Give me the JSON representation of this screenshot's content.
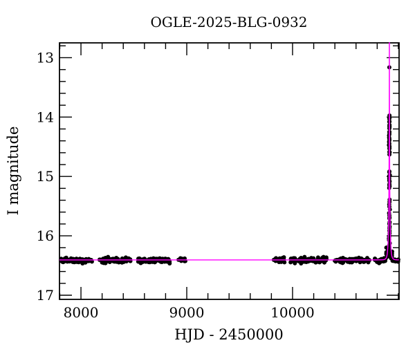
{
  "chart_data": {
    "type": "scatter",
    "title": "OGLE-2025-BLG-0932",
    "xlabel": "HJD - 2450000",
    "ylabel": "I magnitude",
    "xlim": [
      7797,
      11007
    ],
    "ylim": [
      17.07,
      12.75
    ],
    "y_axis_inverted": true,
    "grid": false,
    "legend": null,
    "x_major_ticks": [
      8000,
      9000,
      10000
    ],
    "x_minor_step": 200,
    "y_major_ticks": [
      13,
      14,
      15,
      16,
      17
    ],
    "y_minor_step": 0.2,
    "background_color": "#ffffff",
    "frame_color": "#000000",
    "point_color": "#000000",
    "model_color": "#ff00ff",
    "baseline_mag": 16.41,
    "peak": {
      "t": 10915,
      "brightest_point_mag": 13.15
    },
    "model": {
      "kind": "point-lens-magnification-curve",
      "t0": 10915,
      "tE": 12,
      "u0": 0.0015,
      "baseline_mag": 16.405
    },
    "point_clusters": [
      {
        "t_start": 7810,
        "t_end": 8105,
        "mag": 16.41,
        "mag_sigma": 0.022,
        "n": 68
      },
      {
        "t_start": 8170,
        "t_end": 8470,
        "mag": 16.41,
        "mag_sigma": 0.022,
        "n": 70
      },
      {
        "t_start": 8536,
        "t_end": 8843,
        "mag": 16.41,
        "mag_sigma": 0.022,
        "n": 72
      },
      {
        "t_start": 8921,
        "t_end": 8987,
        "mag": 16.41,
        "mag_sigma": 0.02,
        "n": 14
      },
      {
        "t_start": 9817,
        "t_end": 9935,
        "mag": 16.41,
        "mag_sigma": 0.02,
        "n": 27
      },
      {
        "t_start": 9981,
        "t_end": 10327,
        "mag": 16.41,
        "mag_sigma": 0.022,
        "n": 80
      },
      {
        "t_start": 10399,
        "t_end": 10726,
        "mag": 16.41,
        "mag_sigma": 0.022,
        "n": 76
      },
      {
        "t_start": 10772,
        "t_end": 10883,
        "mag": 16.41,
        "mag_sigma": 0.022,
        "n": 26
      },
      {
        "t_start": 10884,
        "t_end": 10908,
        "mag": 16.3,
        "mag_sigma": 0.045,
        "n": 13
      },
      {
        "t_start": 10922,
        "t_end": 10942,
        "mag": 16.33,
        "mag_sigma": 0.04,
        "n": 9
      },
      {
        "t_start": 10941,
        "t_end": 11000,
        "mag": 16.41,
        "mag_sigma": 0.02,
        "n": 15
      }
    ],
    "peak_column": {
      "t_center": 10915,
      "t_sigma": 5,
      "segments": [
        {
          "mag_min": 13.14,
          "mag_max": 13.18,
          "n": 1
        },
        {
          "mag_min": 13.98,
          "mag_max": 14.62,
          "n": 26
        },
        {
          "mag_min": 14.92,
          "mag_max": 15.2,
          "n": 11
        },
        {
          "mag_min": 15.38,
          "mag_max": 15.55,
          "n": 5
        },
        {
          "mag_min": 15.62,
          "mag_max": 15.8,
          "n": 6
        },
        {
          "mag_min": 15.85,
          "mag_max": 16.05,
          "n": 8
        },
        {
          "mag_min": 16.06,
          "mag_max": 16.24,
          "n": 7
        }
      ]
    }
  }
}
